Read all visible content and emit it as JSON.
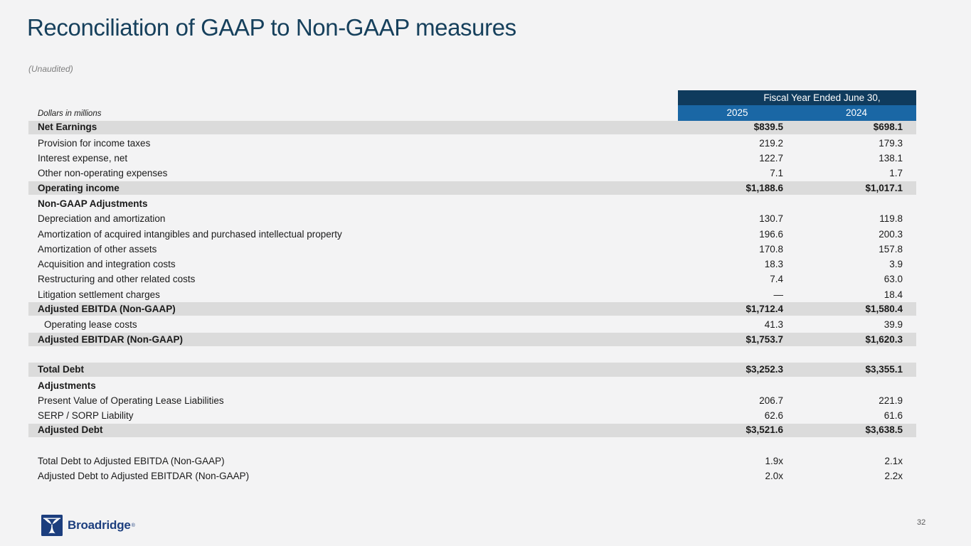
{
  "slide": {
    "title": "Reconciliation of GAAP to Non-GAAP measures",
    "subtitle": "(Unaudited)",
    "page_number": "32"
  },
  "table": {
    "units_note": "Dollars in millions",
    "header": {
      "span_label": "Fiscal Year Ended June 30,",
      "col_2025": "2025",
      "col_2024": "2024"
    },
    "rows": [
      {
        "label": "Net Earnings",
        "y2025": "$839.5",
        "y2024": "$698.1",
        "style": "total"
      },
      {
        "label": "Provision for income taxes",
        "y2025": "219.2",
        "y2024": "179.3",
        "style": "normal"
      },
      {
        "label": "Interest expense, net",
        "y2025": "122.7",
        "y2024": "138.1",
        "style": "normal"
      },
      {
        "label": "Other non-operating expenses",
        "y2025": "7.1",
        "y2024": "1.7",
        "style": "normal"
      },
      {
        "label": "Operating income",
        "y2025": "$1,188.6",
        "y2024": "$1,017.1",
        "style": "total"
      },
      {
        "label": "Non-GAAP Adjustments",
        "y2025": "",
        "y2024": "",
        "style": "section"
      },
      {
        "label": "Depreciation and amortization",
        "y2025": "130.7",
        "y2024": "119.8",
        "style": "normal"
      },
      {
        "label": "Amortization of acquired intangibles and purchased intellectual property",
        "y2025": "196.6",
        "y2024": "200.3",
        "style": "normal"
      },
      {
        "label": "Amortization of other assets",
        "y2025": "170.8",
        "y2024": "157.8",
        "style": "normal"
      },
      {
        "label": "Acquisition and integration costs",
        "y2025": "18.3",
        "y2024": "3.9",
        "style": "normal"
      },
      {
        "label": "Restructuring and other related costs",
        "y2025": "7.4",
        "y2024": "63.0",
        "style": "normal"
      },
      {
        "label": "Litigation settlement charges",
        "y2025": "—",
        "y2024": "18.4",
        "style": "normal"
      },
      {
        "label": "Adjusted EBITDA (Non-GAAP)",
        "y2025": "$1,712.4",
        "y2024": "$1,580.4",
        "style": "total"
      },
      {
        "label": "Operating lease costs",
        "y2025": "41.3",
        "y2024": "39.9",
        "style": "indent"
      },
      {
        "label": "Adjusted EBITDAR (Non-GAAP)",
        "y2025": "$1,753.7",
        "y2024": "$1,620.3",
        "style": "total"
      },
      {
        "label": "",
        "y2025": "",
        "y2024": "",
        "style": "spacer"
      },
      {
        "label": "Total Debt",
        "y2025": "$3,252.3",
        "y2024": "$3,355.1",
        "style": "total"
      },
      {
        "label": "Adjustments",
        "y2025": "",
        "y2024": "",
        "style": "section"
      },
      {
        "label": "Present Value of Operating Lease Liabilities",
        "y2025": "206.7",
        "y2024": "221.9",
        "style": "normal"
      },
      {
        "label": "SERP / SORP Liability",
        "y2025": "62.6",
        "y2024": "61.6",
        "style": "normal"
      },
      {
        "label": "Adjusted Debt",
        "y2025": "$3,521.6",
        "y2024": "$3,638.5",
        "style": "total"
      },
      {
        "label": "",
        "y2025": "",
        "y2024": "",
        "style": "spacer"
      },
      {
        "label": "Total Debt to Adjusted EBITDA (Non-GAAP)",
        "y2025": "1.9x",
        "y2024": "2.1x",
        "style": "normal"
      },
      {
        "label": "Adjusted Debt to Adjusted EBITDAR (Non-GAAP)",
        "y2025": "2.0x",
        "y2024": "2.2x",
        "style": "normal"
      }
    ]
  },
  "footer": {
    "logo_text": "Broadridge",
    "logo_trademark": "®"
  },
  "colors": {
    "background": "#F3F3F4",
    "title_color": "#16405C",
    "text_color": "#1A1A1A",
    "header_navy": "#0F3B5D",
    "header_blue": "#1A67A5",
    "row_shaded": "#DBDBDB",
    "logo_navy": "#1C3E7E"
  }
}
